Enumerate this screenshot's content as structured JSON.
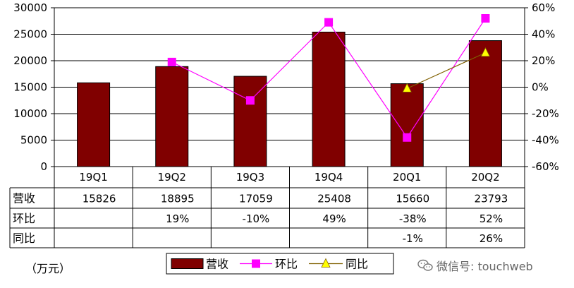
{
  "chart_data": {
    "type": "bar",
    "categories": [
      "19Q1",
      "19Q2",
      "19Q3",
      "19Q4",
      "20Q1",
      "20Q2"
    ],
    "series": [
      {
        "name": "营收",
        "kind": "bar",
        "axis": "left",
        "color": "#800000",
        "values": [
          15826,
          18895,
          17059,
          25408,
          15660,
          23793
        ]
      },
      {
        "name": "环比",
        "kind": "line",
        "axis": "right",
        "color": "#ff00ff",
        "marker": "square",
        "values": [
          null,
          19,
          -10,
          49,
          -38,
          52
        ]
      },
      {
        "name": "同比",
        "kind": "line",
        "axis": "right",
        "color": "#806000",
        "marker": "triangle",
        "marker_color": "#ffff00",
        "values": [
          null,
          null,
          null,
          null,
          -1,
          26
        ]
      }
    ],
    "ylim": [
      0,
      30000
    ],
    "yticks": [
      "0",
      "5000",
      "10000",
      "15000",
      "20000",
      "25000",
      "30000"
    ],
    "y2lim": [
      -60,
      60
    ],
    "y2ticks": [
      "-60%",
      "-40%",
      "-20%",
      "0%",
      "20%",
      "40%",
      "60%"
    ],
    "grid": true,
    "legend_position": "bottom",
    "table": {
      "rows": [
        {
          "label": "营收",
          "cells": [
            "15826",
            "18895",
            "17059",
            "25408",
            "15660",
            "23793"
          ]
        },
        {
          "label": "环比",
          "cells": [
            "",
            "19%",
            "-10%",
            "49%",
            "-38%",
            "52%"
          ]
        },
        {
          "label": "同比",
          "cells": [
            "",
            "",
            "",
            "",
            "-1%",
            "26%"
          ]
        }
      ]
    },
    "unit_note": "（万元）"
  },
  "legend": {
    "items": [
      "营收",
      "环比",
      "同比"
    ]
  },
  "watermark": {
    "text": "微信号: touchweb",
    "icon": "wechat-icon"
  }
}
